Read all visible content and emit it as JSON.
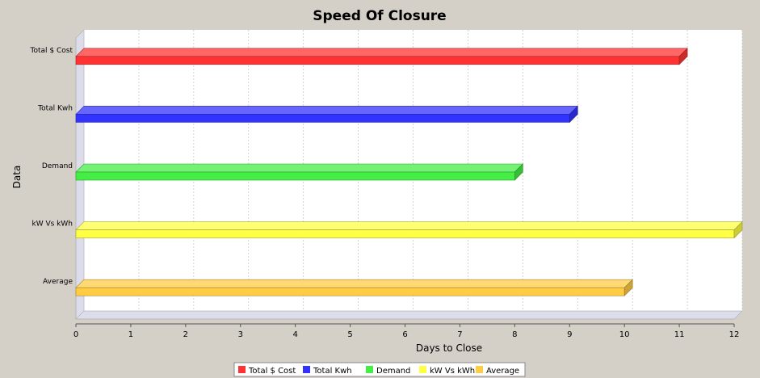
{
  "chart_data": {
    "type": "bar",
    "orientation": "horizontal",
    "title": "Speed Of Closure",
    "xlabel": "Days to Close",
    "ylabel": "Data",
    "xlim": [
      0,
      12
    ],
    "x_ticks": [
      "0",
      "1",
      "2",
      "3",
      "4",
      "5",
      "6",
      "7",
      "8",
      "9",
      "10",
      "11",
      "12"
    ],
    "grid": true,
    "legend_placement": "bottom",
    "categories": [
      "Total $ Cost",
      "Total Kwh",
      "Demand",
      "kW Vs kWh",
      "Average"
    ],
    "values": [
      11,
      9,
      8,
      12,
      10
    ],
    "colors": [
      "#ff3333",
      "#3333ff",
      "#44ee44",
      "#ffff44",
      "#ffcc44"
    ],
    "legend": [
      "Total $ Cost",
      "Total Kwh",
      "Demand",
      "kW Vs kWh",
      "Average"
    ]
  }
}
